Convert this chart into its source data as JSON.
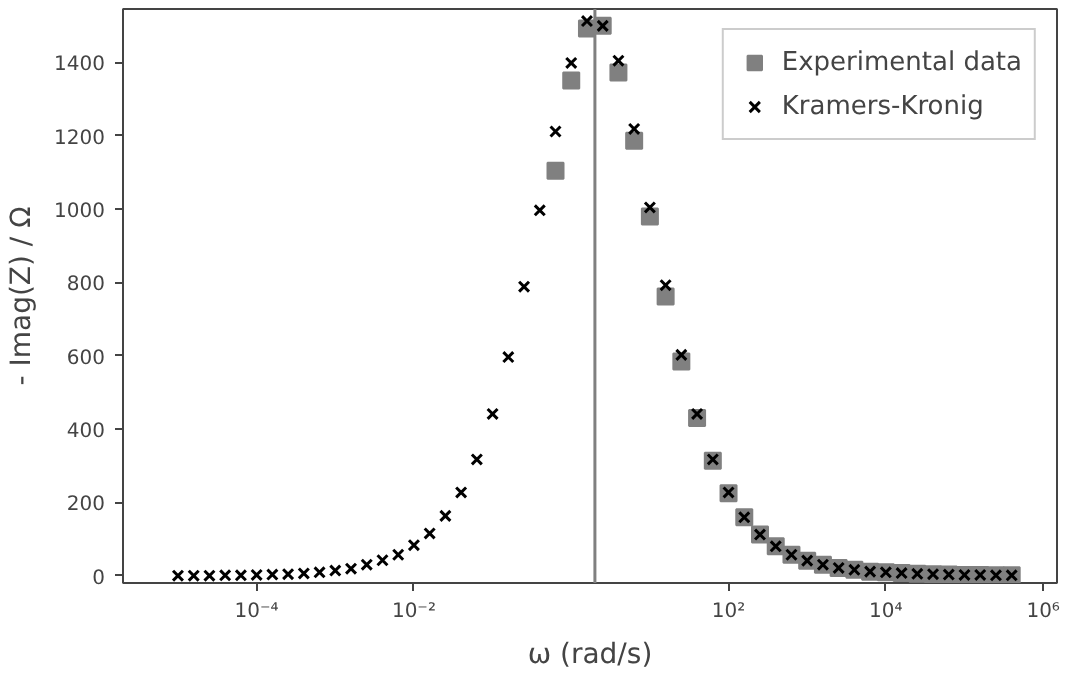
{
  "chart_data": {
    "type": "scatter",
    "xlabel": "ω (rad/s)",
    "ylabel": "- Imag(Z) / Ω",
    "log": "x",
    "grid": false,
    "legend": "top right",
    "xlim": [
      2e-06,
      1500000.0
    ],
    "ylim": [
      -20,
      1545
    ],
    "xticks": [
      {
        "value": 0.0001,
        "label": "10⁻⁴"
      },
      {
        "value": 0.01,
        "label": "10⁻²"
      },
      {
        "value": 100,
        "label": "10²"
      },
      {
        "value": 10000,
        "label": "10⁴"
      },
      {
        "value": 1000000,
        "label": "10⁶"
      }
    ],
    "yticks": [
      0,
      200,
      400,
      600,
      800,
      1000,
      1200,
      1400
    ],
    "ref_lines": [
      {
        "axis": "x",
        "value": 2,
        "color": "#808080"
      }
    ],
    "series": [
      {
        "name": "Experimental data",
        "color": "#808080",
        "marker": "square",
        "x": [
          0.631,
          1,
          1.585,
          2.512,
          3.981,
          6.31,
          10,
          15.85,
          25.12,
          39.81,
          63.1,
          100,
          158.5,
          251.2,
          398.1,
          631,
          1000,
          1585,
          2512,
          3981,
          6310,
          10000,
          15850,
          25120,
          39810,
          63100,
          100000,
          158500,
          251200,
          398100
        ],
        "values": [
          1104,
          1350,
          1492,
          1499,
          1372,
          1186,
          979,
          761,
          584,
          430,
          313,
          225,
          159,
          112,
          80,
          57,
          41,
          30,
          21,
          16,
          11,
          9,
          7,
          5,
          4,
          3,
          2,
          2,
          1,
          1
        ]
      },
      {
        "name": "Kramers-Kronig",
        "color": "#000000",
        "marker": "cross",
        "x": [
          1e-05,
          1.585e-05,
          2.512e-05,
          3.981e-05,
          6.31e-05,
          0.0001,
          0.0001585,
          0.0002512,
          0.0003981,
          0.000631,
          0.001,
          0.001585,
          0.002512,
          0.003981,
          0.00631,
          0.01,
          0.01585,
          0.02512,
          0.03981,
          0.0631,
          0.1,
          0.1585,
          0.2512,
          0.3981,
          0.631,
          1,
          1.585,
          2.512,
          3.981,
          6.31,
          10,
          15.85,
          25.12,
          39.81,
          63.1,
          100,
          158.5,
          251.2,
          398.1,
          631,
          1000,
          1585,
          2512,
          3981,
          6310,
          10000,
          15850,
          25120,
          39810,
          63100,
          100000,
          158500,
          251200,
          398100
        ],
        "values": [
          0,
          0,
          0,
          1,
          1,
          2,
          3,
          4,
          6,
          9,
          14,
          19,
          30,
          42,
          57,
          83,
          115,
          163,
          227,
          317,
          441,
          596,
          788,
          996,
          1211,
          1398,
          1512,
          1499,
          1404,
          1218,
          1004,
          792,
          602,
          441,
          317,
          227,
          159,
          112,
          80,
          57,
          41,
          30,
          21,
          16,
          11,
          9,
          7,
          5,
          4,
          3,
          2,
          2,
          1,
          1
        ]
      }
    ]
  }
}
